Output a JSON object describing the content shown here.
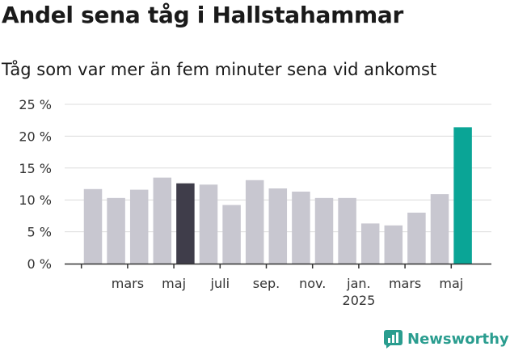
{
  "title": "Andel sena tåg i Hallstahammar",
  "subtitle": "Tåg som var mer än fem minuter sena vid ankomst",
  "brand": {
    "name": "Newsworthy",
    "color": "#2a9d8f"
  },
  "chart_data": {
    "type": "bar",
    "title": "Andel sena tåg i Hallstahammar",
    "subtitle": "Tåg som var mer än fem minuter sena vid ankomst",
    "ylim": [
      0,
      25
    ],
    "y_ticks": [
      "0 %",
      "5 %",
      "10 %",
      "15 %",
      "20 %",
      "25 %"
    ],
    "y_tick_values": [
      0,
      5,
      10,
      15,
      20,
      25
    ],
    "grid": true,
    "x_tick_labels": [
      {
        "index": 1.5,
        "label": "mars",
        "sub": ""
      },
      {
        "index": 3.5,
        "label": "maj",
        "sub": ""
      },
      {
        "index": 5.5,
        "label": "juli",
        "sub": ""
      },
      {
        "index": 7.5,
        "label": "sep.",
        "sub": ""
      },
      {
        "index": 9.5,
        "label": "nov.",
        "sub": ""
      },
      {
        "index": 11.5,
        "label": "jan.",
        "sub": "2025"
      },
      {
        "index": 13.5,
        "label": "mars",
        "sub": ""
      },
      {
        "index": 15.5,
        "label": "maj",
        "sub": ""
      }
    ],
    "values": [
      11.7,
      10.3,
      11.6,
      13.5,
      12.6,
      12.4,
      9.2,
      13.1,
      11.8,
      11.3,
      10.3,
      10.3,
      6.3,
      6.0,
      8.0,
      10.9,
      21.4
    ],
    "bar_colors": {
      "default": "#c8c7d0",
      "highlight_dark": "#3f3d4a",
      "highlight_teal": "#0aa596",
      "dark_index": 4,
      "teal_index": 16
    }
  }
}
